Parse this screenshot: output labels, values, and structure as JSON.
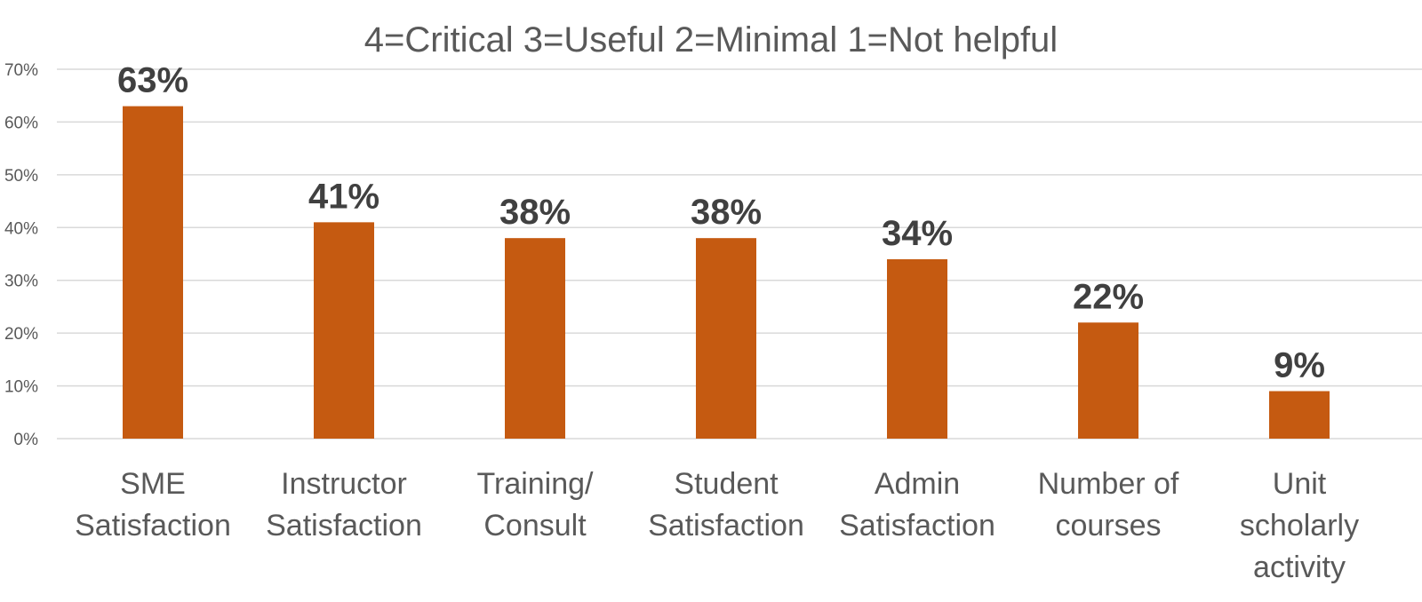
{
  "chart_data": {
    "type": "bar",
    "title": "4=Critical  3=Useful  2=Minimal  1=Not helpful",
    "xlabel": "",
    "ylabel": "",
    "categories": [
      [
        "SME",
        "Satisfaction"
      ],
      [
        "Instructor",
        "Satisfaction"
      ],
      [
        "Training/",
        "Consult"
      ],
      [
        "Student",
        "Satisfaction"
      ],
      [
        "Admin",
        "Satisfaction"
      ],
      [
        "Number of",
        "courses"
      ],
      [
        "Unit",
        "scholarly",
        "activity"
      ]
    ],
    "values": [
      63,
      41,
      38,
      38,
      34,
      22,
      9
    ],
    "data_labels": [
      "63%",
      "41%",
      "38%",
      "38%",
      "34%",
      "22%",
      "9%"
    ],
    "ylim": [
      0,
      70
    ],
    "yticks": [
      0,
      10,
      20,
      30,
      40,
      50,
      60,
      70
    ],
    "ytick_labels": [
      "0%",
      "10%",
      "20%",
      "30%",
      "40%",
      "50%",
      "60%",
      "70%"
    ],
    "grid": true,
    "legend": "none",
    "colors": {
      "bar": "#c55a11",
      "grid": "#d9d9d9",
      "text": "#595959",
      "data_label": "#404040"
    }
  }
}
